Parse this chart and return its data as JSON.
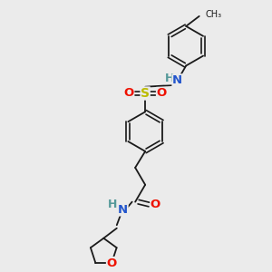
{
  "bg_color": "#ebebeb",
  "bond_color": "#1a1a1a",
  "atom_colors": {
    "N": "#2255cc",
    "O": "#ee1100",
    "S": "#bbbb00",
    "H": "#559999",
    "C": "#1a1a1a"
  },
  "figsize": [
    3.0,
    3.0
  ],
  "dpi": 100
}
